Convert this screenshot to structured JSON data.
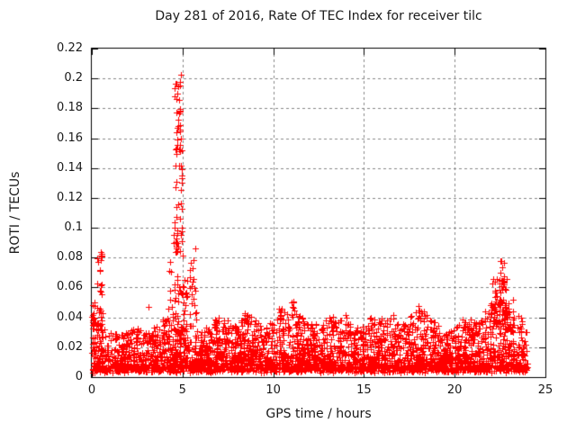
{
  "chart_data": {
    "type": "scatter",
    "title": "Day 281 of 2016, Rate Of TEC Index for receiver tilc",
    "xlabel": "GPS time / hours",
    "ylabel": "ROTI / TECUs",
    "xlim": [
      0,
      25
    ],
    "ylim": [
      0,
      0.22
    ],
    "xtick_values": [
      0,
      5,
      10,
      15,
      20,
      25
    ],
    "xtick_labels": [
      "0",
      "5",
      "10",
      "15",
      "20",
      "25"
    ],
    "ytick_values": [
      0,
      0.02,
      0.04,
      0.06,
      0.08,
      0.1,
      0.12,
      0.14,
      0.16,
      0.18,
      0.2,
      0.22
    ],
    "ytick_labels": [
      "0",
      "0.02",
      "0.04",
      "0.06",
      "0.08",
      "0.1",
      "0.12",
      "0.14",
      "0.16",
      "0.18",
      "0.2",
      "0.22"
    ],
    "grid": true,
    "grid_color": "#878787",
    "frame_color": "#000000",
    "marker": {
      "shape": "plus",
      "size": 7,
      "color": "#ff0000"
    },
    "data_hours_range": [
      0,
      24
    ],
    "scatter_model": {
      "baseline": {
        "count": 3400,
        "floor_min": 0.003,
        "floor_jitter": 0.004,
        "power": 2.2,
        "envelope": [
          [
            0,
            0.042
          ],
          [
            0.3,
            0.038
          ],
          [
            0.6,
            0.033
          ],
          [
            1,
            0.03
          ],
          [
            1.5,
            0.028
          ],
          [
            2,
            0.031
          ],
          [
            2.5,
            0.033
          ],
          [
            3,
            0.03
          ],
          [
            3.5,
            0.034
          ],
          [
            4,
            0.04
          ],
          [
            4.5,
            0.04
          ],
          [
            5,
            0.038
          ],
          [
            5.5,
            0.036
          ],
          [
            6,
            0.031
          ],
          [
            6.5,
            0.035
          ],
          [
            7,
            0.042
          ],
          [
            7.5,
            0.038
          ],
          [
            8,
            0.034
          ],
          [
            8.5,
            0.044
          ],
          [
            9,
            0.04
          ],
          [
            9.5,
            0.031
          ],
          [
            10,
            0.04
          ],
          [
            10.5,
            0.046
          ],
          [
            11,
            0.05
          ],
          [
            11.5,
            0.042
          ],
          [
            12,
            0.036
          ],
          [
            12.5,
            0.036
          ],
          [
            13,
            0.041
          ],
          [
            13.5,
            0.04
          ],
          [
            14,
            0.042
          ],
          [
            14.5,
            0.036
          ],
          [
            15,
            0.035
          ],
          [
            15.5,
            0.044
          ],
          [
            16,
            0.04
          ],
          [
            16.5,
            0.044
          ],
          [
            17,
            0.038
          ],
          [
            17.5,
            0.04
          ],
          [
            18,
            0.048
          ],
          [
            18.5,
            0.042
          ],
          [
            19,
            0.036
          ],
          [
            19.5,
            0.03
          ],
          [
            20,
            0.033
          ],
          [
            20.5,
            0.04
          ],
          [
            21,
            0.038
          ],
          [
            21.5,
            0.042
          ],
          [
            22,
            0.05
          ],
          [
            22.3,
            0.052
          ],
          [
            22.6,
            0.054
          ],
          [
            23,
            0.046
          ],
          [
            23.5,
            0.042
          ],
          [
            24,
            0.036
          ]
        ]
      },
      "clusters": [
        {
          "center": 0.45,
          "width": 0.35,
          "count": 26,
          "min": 0.035,
          "max": 0.084,
          "power": 1.4
        },
        {
          "center": 0.08,
          "width": 0.16,
          "count": 8,
          "min": 0.034,
          "max": 0.05,
          "power": 1.0
        },
        {
          "center": 4.5,
          "width": 0.55,
          "count": 26,
          "min": 0.04,
          "max": 0.105,
          "power": 1.3
        },
        {
          "center": 4.78,
          "width": 0.42,
          "count": 40,
          "min": 0.1,
          "max": 0.198,
          "power": 1.0
        },
        {
          "center": 4.8,
          "width": 0.45,
          "count": 18,
          "min": 0.055,
          "max": 0.1,
          "power": 1.0
        },
        {
          "center": 5.12,
          "width": 0.3,
          "count": 14,
          "min": 0.04,
          "max": 0.07,
          "power": 1.0
        },
        {
          "center": 5.55,
          "width": 0.4,
          "count": 20,
          "min": 0.038,
          "max": 0.09,
          "power": 1.3
        },
        {
          "center": 22.5,
          "width": 1.0,
          "count": 55,
          "min": 0.032,
          "max": 0.066,
          "power": 1.4
        },
        {
          "center": 22.6,
          "width": 0.4,
          "count": 12,
          "min": 0.058,
          "max": 0.078,
          "power": 1.0
        },
        {
          "center": 23.15,
          "width": 0.45,
          "count": 14,
          "min": 0.03,
          "max": 0.055,
          "power": 1.2
        },
        {
          "center": 23.65,
          "width": 0.15,
          "count": 4,
          "min": 0.032,
          "max": 0.041,
          "power": 1.0
        },
        {
          "center": 11.05,
          "width": 0.12,
          "count": 5,
          "min": 0.038,
          "max": 0.051,
          "power": 1.0
        },
        {
          "center": 10.35,
          "width": 0.2,
          "count": 5,
          "min": 0.035,
          "max": 0.048,
          "power": 1.0
        },
        {
          "center": 18.0,
          "width": 0.15,
          "count": 4,
          "min": 0.038,
          "max": 0.051,
          "power": 1.0
        },
        {
          "center": 8.55,
          "width": 0.3,
          "count": 6,
          "min": 0.035,
          "max": 0.046,
          "power": 1.0
        }
      ],
      "peak_points": [
        [
          4.93,
          0.2025
        ],
        [
          4.88,
          0.1975
        ],
        [
          4.84,
          0.195
        ],
        [
          4.62,
          0.1965
        ],
        [
          4.55,
          0.1935
        ],
        [
          4.72,
          0.19
        ],
        [
          4.8,
          0.1855
        ],
        [
          4.86,
          0.1795
        ],
        [
          4.78,
          0.1725
        ],
        [
          4.88,
          0.166
        ],
        [
          4.7,
          0.159
        ],
        [
          4.82,
          0.1525
        ],
        [
          3.12,
          0.047
        ],
        [
          0.52,
          0.0835
        ],
        [
          0.5,
          0.0785
        ],
        [
          22.53,
          0.0775
        ],
        [
          0.47,
          0.071
        ]
      ]
    }
  }
}
